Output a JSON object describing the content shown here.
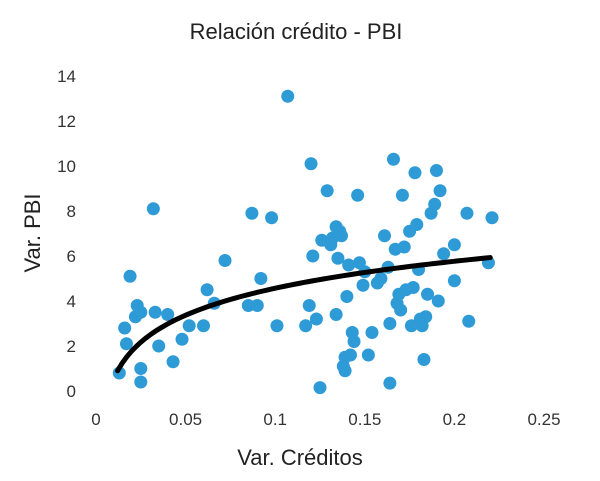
{
  "chart_data": {
    "type": "scatter",
    "title": "Relación crédito - PBI",
    "xlabel": "Var. Créditos",
    "ylabel": "Var. PBI",
    "xlim": [
      0,
      0.25
    ],
    "ylim": [
      0,
      14
    ],
    "x_ticks": [
      "0",
      "0.05",
      "0.1",
      "0.15",
      "0.2",
      "0.25"
    ],
    "y_ticks": [
      "0",
      "2",
      "4",
      "6",
      "8",
      "10",
      "12",
      "14"
    ],
    "grid": false,
    "legend": "none",
    "point_color": "#2e9bd6",
    "trend_color": "#000000",
    "trendline": {
      "type": "logarithmic",
      "x_range": [
        0.012,
        0.22
      ],
      "a": 8.55,
      "b": 1.73
    },
    "points": [
      [
        0.013,
        0.8
      ],
      [
        0.016,
        2.8
      ],
      [
        0.017,
        2.1
      ],
      [
        0.019,
        5.1
      ],
      [
        0.022,
        3.3
      ],
      [
        0.023,
        3.8
      ],
      [
        0.025,
        3.5
      ],
      [
        0.025,
        1.0
      ],
      [
        0.025,
        0.4
      ],
      [
        0.032,
        8.1
      ],
      [
        0.033,
        3.5
      ],
      [
        0.035,
        2.0
      ],
      [
        0.04,
        3.4
      ],
      [
        0.043,
        1.3
      ],
      [
        0.048,
        2.3
      ],
      [
        0.052,
        2.9
      ],
      [
        0.06,
        2.9
      ],
      [
        0.062,
        4.5
      ],
      [
        0.066,
        3.9
      ],
      [
        0.072,
        5.8
      ],
      [
        0.085,
        3.8
      ],
      [
        0.087,
        7.9
      ],
      [
        0.09,
        3.8
      ],
      [
        0.092,
        5.0
      ],
      [
        0.098,
        7.7
      ],
      [
        0.101,
        2.9
      ],
      [
        0.107,
        13.1
      ],
      [
        0.117,
        2.9
      ],
      [
        0.119,
        3.8
      ],
      [
        0.12,
        10.1
      ],
      [
        0.121,
        6.0
      ],
      [
        0.123,
        3.2
      ],
      [
        0.125,
        0.15
      ],
      [
        0.126,
        6.7
      ],
      [
        0.129,
        8.9
      ],
      [
        0.131,
        6.5
      ],
      [
        0.132,
        6.8
      ],
      [
        0.134,
        7.3
      ],
      [
        0.134,
        3.4
      ],
      [
        0.135,
        5.9
      ],
      [
        0.136,
        7.1
      ],
      [
        0.137,
        6.9
      ],
      [
        0.138,
        1.1
      ],
      [
        0.139,
        1.5
      ],
      [
        0.139,
        0.9
      ],
      [
        0.14,
        4.2
      ],
      [
        0.141,
        5.6
      ],
      [
        0.142,
        1.6
      ],
      [
        0.143,
        2.6
      ],
      [
        0.144,
        2.2
      ],
      [
        0.146,
        8.7
      ],
      [
        0.147,
        5.7
      ],
      [
        0.149,
        4.7
      ],
      [
        0.15,
        5.3
      ],
      [
        0.152,
        1.6
      ],
      [
        0.154,
        2.6
      ],
      [
        0.157,
        4.8
      ],
      [
        0.159,
        5.0
      ],
      [
        0.161,
        6.9
      ],
      [
        0.163,
        5.5
      ],
      [
        0.164,
        0.35
      ],
      [
        0.164,
        3.0
      ],
      [
        0.166,
        10.3
      ],
      [
        0.167,
        6.3
      ],
      [
        0.168,
        3.9
      ],
      [
        0.169,
        4.3
      ],
      [
        0.17,
        3.6
      ],
      [
        0.171,
        8.7
      ],
      [
        0.172,
        6.4
      ],
      [
        0.173,
        4.5
      ],
      [
        0.175,
        7.1
      ],
      [
        0.176,
        2.9
      ],
      [
        0.177,
        4.6
      ],
      [
        0.178,
        9.7
      ],
      [
        0.179,
        7.4
      ],
      [
        0.18,
        5.4
      ],
      [
        0.181,
        3.2
      ],
      [
        0.182,
        2.9
      ],
      [
        0.183,
        1.4
      ],
      [
        0.184,
        3.3
      ],
      [
        0.185,
        4.3
      ],
      [
        0.187,
        7.9
      ],
      [
        0.189,
        8.3
      ],
      [
        0.19,
        9.8
      ],
      [
        0.191,
        4.0
      ],
      [
        0.192,
        8.9
      ],
      [
        0.194,
        6.1
      ],
      [
        0.2,
        6.5
      ],
      [
        0.2,
        4.9
      ],
      [
        0.207,
        7.9
      ],
      [
        0.208,
        3.1
      ],
      [
        0.219,
        5.7
      ],
      [
        0.221,
        7.7
      ]
    ]
  }
}
